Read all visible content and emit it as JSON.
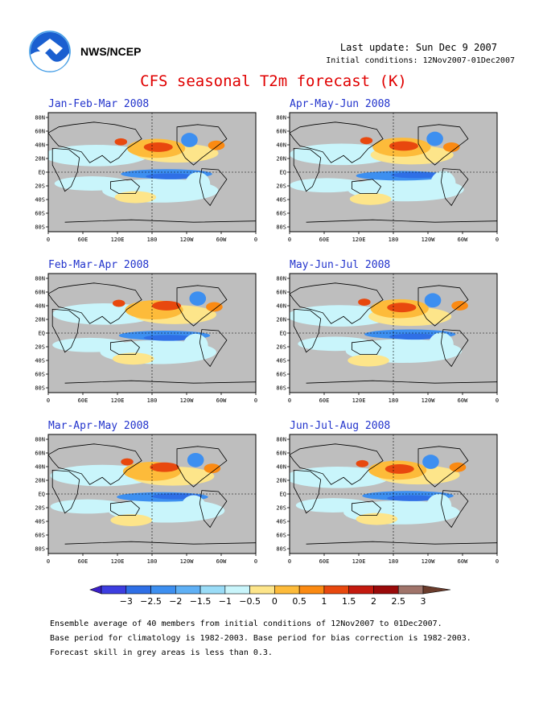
{
  "header": {
    "organization": "NWS/NCEP",
    "last_update": "Last update: Sun Dec 9 2007",
    "initial_conditions": "Initial conditions: 12Nov2007-01Dec2007"
  },
  "main_title": "CFS seasonal T2m forecast (K)",
  "maps": [
    {
      "title": "Jan-Feb-Mar 2008"
    },
    {
      "title": "Apr-May-Jun 2008"
    },
    {
      "title": "Feb-Mar-Apr 2008"
    },
    {
      "title": "May-Jun-Jul 2008"
    },
    {
      "title": "Mar-Apr-May 2008"
    },
    {
      "title": "Jun-Jul-Aug 2008"
    }
  ],
  "lat_labels": [
    "80N",
    "60N",
    "40N",
    "20N",
    "EQ",
    "20S",
    "40S",
    "60S",
    "80S"
  ],
  "lon_labels": [
    "0",
    "60E",
    "120E",
    "180",
    "120W",
    "60W",
    "0"
  ],
  "colorbar": {
    "labels": [
      "-3",
      "-2.5",
      "-2",
      "-1.5",
      "-1",
      "-0.5",
      "0",
      "0.5",
      "1",
      "1.5",
      "2",
      "2.5",
      "3"
    ],
    "colors": [
      "#3b1fc8",
      "#3d3ee0",
      "#2f6fe6",
      "#3d8ff0",
      "#5fb0f5",
      "#9adcf7",
      "#c9f5fb",
      "#fde58a",
      "#fdbb3a",
      "#fb8a12",
      "#e8480e",
      "#c41a0f",
      "#9a0a0a",
      "#a0746a",
      "#6b3c2c"
    ]
  },
  "footnotes": [
    "Ensemble average of 40 members from initial conditions of 12Nov2007 to 01Dec2007.",
    "Base period for climatology is 1982-2003. Base period for bias correction is 1982-2003.",
    "Forecast skill in grey areas is less than 0.3."
  ]
}
